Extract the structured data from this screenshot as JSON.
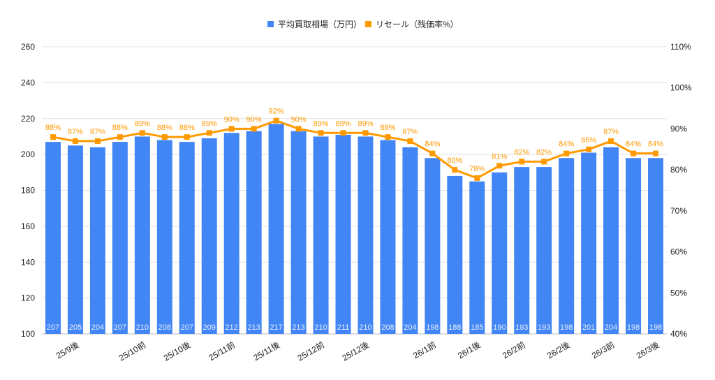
{
  "chart_data": {
    "type": "bar+line",
    "title": "",
    "categories": [
      "",
      "25/9後",
      "",
      "",
      "25/10前",
      "",
      "25/10後",
      "",
      "25/11前",
      "",
      "25/11後",
      "",
      "25/12前",
      "",
      "25/12後",
      "",
      "",
      "26/1前",
      "",
      "26/1後",
      "",
      "26/2前",
      "",
      "26/2後",
      "",
      "26/3前",
      "",
      "26/3後"
    ],
    "series": [
      {
        "name": "平均買取相場（万円）",
        "type": "bar",
        "axis": "left",
        "color": "#4285f4",
        "values": [
          207,
          205,
          204,
          207,
          210,
          208,
          207,
          209,
          212,
          213,
          217,
          213,
          210,
          211,
          210,
          208,
          204,
          198,
          188,
          185,
          190,
          193,
          193,
          198,
          201,
          204,
          198,
          198
        ]
      },
      {
        "name": "リセール（残価率%）",
        "type": "line",
        "axis": "right",
        "color": "#ff9900",
        "values": [
          88,
          87,
          87,
          88,
          89,
          88,
          88,
          89,
          90,
          90,
          92,
          90,
          89,
          89,
          89,
          88,
          87,
          84,
          80,
          78,
          81,
          82,
          82,
          84,
          85,
          87,
          84,
          84
        ]
      }
    ],
    "left_axis": {
      "ylim": [
        100,
        260
      ],
      "ticks": [
        "100",
        "120",
        "140",
        "160",
        "180",
        "200",
        "220",
        "240",
        "260"
      ]
    },
    "right_axis": {
      "ylim": [
        40,
        110
      ],
      "ticks": [
        "40%",
        "50%",
        "60%",
        "70%",
        "80%",
        "90%",
        "100%",
        "110%"
      ]
    },
    "grid": true,
    "legend": "top"
  }
}
